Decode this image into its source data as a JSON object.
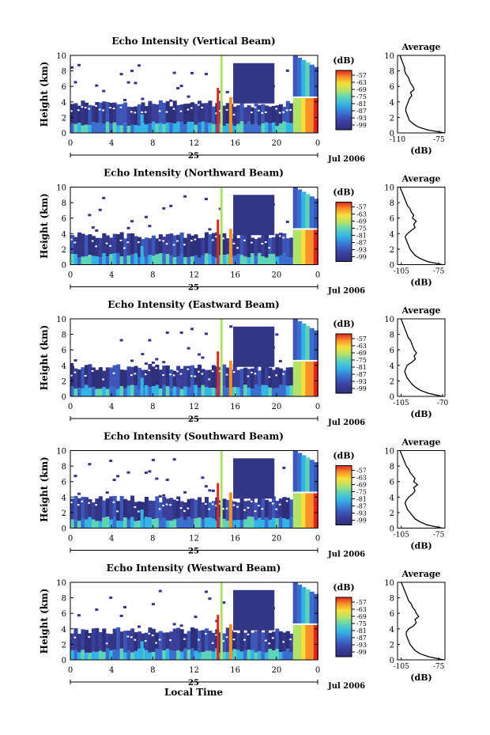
{
  "figure": {
    "xlabel": "Local Time",
    "date_label": "Jul 2006",
    "day_label": "25",
    "colorbar_unit": "(dB)",
    "avg_title": "Average",
    "avg_xlabel": "(dB)",
    "height_label": "Height (km)"
  },
  "chart_data": [
    {
      "type": "heatmap",
      "title": "Echo Intensity (Vertical Beam)",
      "ylabel": "Height (km)",
      "x_ticks": [
        "0",
        "4",
        "8",
        "12",
        "16",
        "20",
        "0"
      ],
      "y_ticks": [
        "0",
        "2",
        "4",
        "6",
        "8",
        "10"
      ],
      "xlim": [
        0,
        24
      ],
      "ylim": [
        0,
        10
      ],
      "colorbar_ticks": [
        "-57",
        "-63",
        "-69",
        "-75",
        "-81",
        "-87",
        "-93",
        "-99"
      ],
      "avg_xticks": [
        "-110",
        "-75"
      ],
      "avg_xlim": [
        -110,
        -70
      ],
      "avg_profile": {
        "heights": [
          0,
          0.4,
          0.8,
          1.2,
          1.6,
          2.0,
          2.4,
          2.8,
          3.2,
          3.6,
          4.0,
          4.4,
          4.8,
          5.2,
          5.6,
          6.0,
          6.4,
          6.8,
          7.2,
          7.6,
          8.0,
          8.4,
          8.8,
          9.2,
          9.6,
          10.0
        ],
        "values": [
          -70,
          -85,
          -93,
          -97,
          -100,
          -101,
          -102,
          -103,
          -103,
          -102,
          -101,
          -100,
          -98,
          -99,
          -96,
          -97,
          -99,
          -100,
          -101,
          -103,
          -104,
          -104,
          -105,
          -106,
          -107,
          -108
        ]
      }
    },
    {
      "type": "heatmap",
      "title": "Echo Intensity (Northward Beam)",
      "ylabel": "Height (km)",
      "x_ticks": [
        "0",
        "4",
        "8",
        "12",
        "16",
        "20",
        "0"
      ],
      "y_ticks": [
        "0",
        "2",
        "4",
        "6",
        "8",
        "10"
      ],
      "xlim": [
        0,
        24
      ],
      "ylim": [
        0,
        10
      ],
      "colorbar_ticks": [
        "-57",
        "-63",
        "-69",
        "-75",
        "-81",
        "-87",
        "-93",
        "-99"
      ],
      "avg_xticks": [
        "-105",
        "-75"
      ],
      "avg_xlim": [
        -108,
        -70
      ],
      "avg_profile": {
        "heights": [
          0,
          0.4,
          0.8,
          1.2,
          1.6,
          2.0,
          2.4,
          2.8,
          3.2,
          3.6,
          4.0,
          4.4,
          4.8,
          5.2,
          5.6,
          6.0,
          6.4,
          6.8,
          7.2,
          7.6,
          8.0,
          8.4,
          8.8,
          9.2,
          9.6,
          10.0
        ],
        "values": [
          -72,
          -84,
          -90,
          -94,
          -96,
          -98,
          -99,
          -100,
          -101,
          -102,
          -100,
          -97,
          -94,
          -95,
          -93,
          -96,
          -95,
          -97,
          -98,
          -100,
          -101,
          -102,
          -103,
          -104,
          -105,
          -106
        ]
      }
    },
    {
      "type": "heatmap",
      "title": "Echo Intensity (Eastward Beam)",
      "ylabel": "Height (km)",
      "x_ticks": [
        "0",
        "4",
        "8",
        "12",
        "16",
        "20",
        "0"
      ],
      "y_ticks": [
        "0",
        "2",
        "4",
        "6",
        "8",
        "10"
      ],
      "xlim": [
        0,
        24
      ],
      "ylim": [
        0,
        10
      ],
      "colorbar_ticks": [
        "-57",
        "-63",
        "-69",
        "-75",
        "-81",
        "-87",
        "-93",
        "-99"
      ],
      "avg_xticks": [
        "-105",
        "-70"
      ],
      "avg_xlim": [
        -108,
        -68
      ],
      "avg_profile": {
        "heights": [
          0,
          0.4,
          0.8,
          1.2,
          1.6,
          2.0,
          2.4,
          2.8,
          3.2,
          3.6,
          4.0,
          4.4,
          4.8,
          5.2,
          5.6,
          6.0,
          6.4,
          6.8,
          7.2,
          7.6,
          8.0,
          8.4,
          8.8,
          9.2,
          9.6,
          10.0
        ],
        "values": [
          -70,
          -82,
          -89,
          -93,
          -96,
          -98,
          -100,
          -101,
          -102,
          -101,
          -100,
          -96,
          -93,
          -94,
          -92,
          -94,
          -95,
          -96,
          -97,
          -99,
          -100,
          -101,
          -102,
          -103,
          -104,
          -105
        ]
      }
    },
    {
      "type": "heatmap",
      "title": "Echo Intensity (Southward Beam)",
      "ylabel": "Height (km)",
      "x_ticks": [
        "0",
        "4",
        "8",
        "12",
        "16",
        "20",
        "0"
      ],
      "y_ticks": [
        "0",
        "2",
        "4",
        "6",
        "8",
        "10"
      ],
      "xlim": [
        0,
        24
      ],
      "ylim": [
        0,
        10
      ],
      "colorbar_ticks": [
        "-57",
        "-63",
        "-69",
        "-75",
        "-81",
        "-87",
        "-93",
        "-99"
      ],
      "avg_xticks": [
        "-105",
        "-75"
      ],
      "avg_xlim": [
        -108,
        -70
      ],
      "avg_profile": {
        "heights": [
          0,
          0.4,
          0.8,
          1.2,
          1.6,
          2.0,
          2.4,
          2.8,
          3.2,
          3.6,
          4.0,
          4.4,
          4.8,
          5.2,
          5.6,
          6.0,
          6.4,
          6.8,
          7.2,
          7.6,
          8.0,
          8.4,
          8.8,
          9.2,
          9.6,
          10.0
        ],
        "values": [
          -72,
          -84,
          -90,
          -94,
          -96,
          -98,
          -100,
          -101,
          -102,
          -101,
          -99,
          -96,
          -94,
          -95,
          -92,
          -95,
          -94,
          -96,
          -98,
          -99,
          -101,
          -102,
          -103,
          -104,
          -105,
          -106
        ]
      }
    },
    {
      "type": "heatmap",
      "title": "Echo Intensity (Westward Beam)",
      "ylabel": "Height (km)",
      "x_ticks": [
        "0",
        "4",
        "8",
        "12",
        "16",
        "20",
        "0"
      ],
      "y_ticks": [
        "0",
        "2",
        "4",
        "6",
        "8",
        "10"
      ],
      "xlim": [
        0,
        24
      ],
      "ylim": [
        0,
        10
      ],
      "colorbar_ticks": [
        "-57",
        "-63",
        "-69",
        "-75",
        "-81",
        "-87",
        "-93",
        "-99"
      ],
      "avg_xticks": [
        "-105",
        "-75"
      ],
      "avg_xlim": [
        -108,
        -70
      ],
      "avg_profile": {
        "heights": [
          0,
          0.4,
          0.8,
          1.2,
          1.6,
          2.0,
          2.4,
          2.8,
          3.2,
          3.6,
          4.0,
          4.4,
          4.8,
          5.2,
          5.6,
          6.0,
          6.4,
          6.8,
          7.2,
          7.6,
          8.0,
          8.4,
          8.8,
          9.2,
          9.6,
          10.0
        ],
        "values": [
          -71,
          -83,
          -90,
          -94,
          -96,
          -98,
          -99,
          -100,
          -101,
          -101,
          -99,
          -95,
          -93,
          -94,
          -91,
          -93,
          -94,
          -96,
          -97,
          -99,
          -100,
          -101,
          -102,
          -103,
          -104,
          -105
        ]
      }
    }
  ]
}
